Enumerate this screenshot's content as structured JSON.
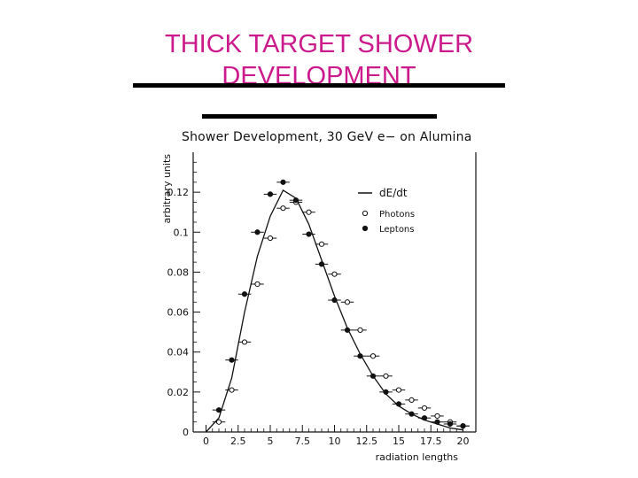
{
  "slide": {
    "title_line1": "THICK TARGET SHOWER",
    "title_line2": "DEVELOPMENT"
  },
  "chart_data": {
    "type": "line",
    "title": "Shower Development, 30 GeV e− on Alumina",
    "xlabel": "radiation lengths",
    "ylabel": "arbitrary units",
    "xlim": [
      -1,
      21
    ],
    "ylim": [
      0,
      0.14
    ],
    "xticks": [
      "0",
      "2.5",
      "5",
      "7.5",
      "10",
      "12.5",
      "15",
      "17.5",
      "20"
    ],
    "yticks": [
      "0",
      "0.02",
      "0.04",
      "0.06",
      "0.08",
      "0.1",
      "0.12"
    ],
    "legend_position": "top-right",
    "grid": false,
    "series": [
      {
        "name": "dE/dt",
        "style": "histogram-line",
        "x": [
          0,
          1,
          2,
          3,
          4,
          5,
          6,
          7,
          8,
          9,
          10,
          11,
          12,
          13,
          14,
          15,
          16,
          17,
          18,
          19,
          20
        ],
        "y": [
          0.0,
          0.007,
          0.027,
          0.06,
          0.088,
          0.108,
          0.121,
          0.117,
          0.104,
          0.086,
          0.068,
          0.052,
          0.039,
          0.028,
          0.019,
          0.013,
          0.009,
          0.006,
          0.004,
          0.002,
          0.001
        ]
      },
      {
        "name": "Photons",
        "marker": "open-circle",
        "x": [
          1,
          2,
          3,
          4,
          5,
          6,
          7,
          8,
          9,
          10,
          11,
          12,
          13,
          14,
          15,
          16,
          17,
          18,
          19,
          20
        ],
        "y": [
          0.005,
          0.021,
          0.045,
          0.074,
          0.097,
          0.112,
          0.115,
          0.11,
          0.094,
          0.079,
          0.065,
          0.051,
          0.038,
          0.028,
          0.021,
          0.016,
          0.012,
          0.008,
          0.005,
          0.003
        ]
      },
      {
        "name": "Leptons",
        "marker": "filled-circle",
        "x": [
          1,
          2,
          3,
          4,
          5,
          6,
          7,
          8,
          9,
          10,
          11,
          12,
          13,
          14,
          15,
          16,
          17,
          18,
          19,
          20
        ],
        "y": [
          0.011,
          0.036,
          0.069,
          0.1,
          0.119,
          0.125,
          0.116,
          0.099,
          0.084,
          0.066,
          0.051,
          0.038,
          0.028,
          0.02,
          0.014,
          0.009,
          0.007,
          0.005,
          0.004,
          0.003
        ]
      }
    ]
  },
  "colors": {
    "title": "#cc1a8c",
    "ink": "#111111"
  }
}
